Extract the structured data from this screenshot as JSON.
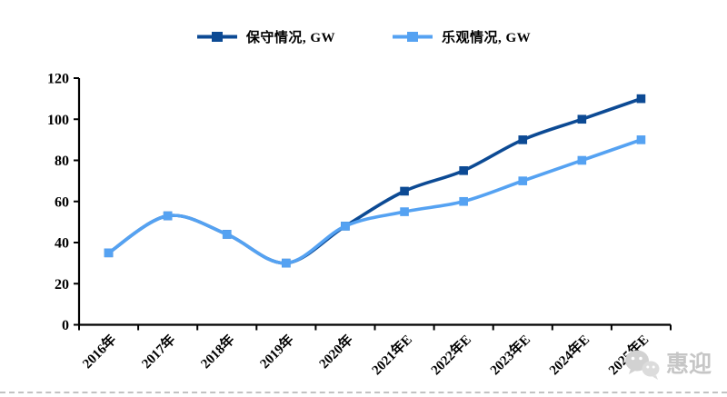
{
  "chart_data": {
    "type": "line",
    "title": "",
    "xlabel": "",
    "ylabel": "",
    "categories": [
      "2016年",
      "2017年",
      "2018年",
      "2019年",
      "2020年",
      "2021年E",
      "2022年E",
      "2023年E",
      "2024年E",
      "2025年E"
    ],
    "series": [
      {
        "name": "保守情况, GW",
        "color": "#0C4A94",
        "values": [
          35,
          53,
          44,
          30,
          48,
          65,
          75,
          90,
          100,
          110
        ]
      },
      {
        "name": "乐观情况, GW",
        "color": "#55A2F2",
        "values": [
          35,
          53,
          44,
          30,
          48,
          55,
          60,
          70,
          80,
          90
        ]
      }
    ],
    "ylim": [
      0,
      120
    ],
    "yticks": [
      0,
      20,
      40,
      60,
      80,
      100,
      120
    ],
    "grid": false,
    "smooth": true,
    "marker": "square",
    "legend_position": "top",
    "axis_color": "#000000"
  },
  "watermark": {
    "icon": "wechat-icon",
    "text": "惠迎"
  }
}
